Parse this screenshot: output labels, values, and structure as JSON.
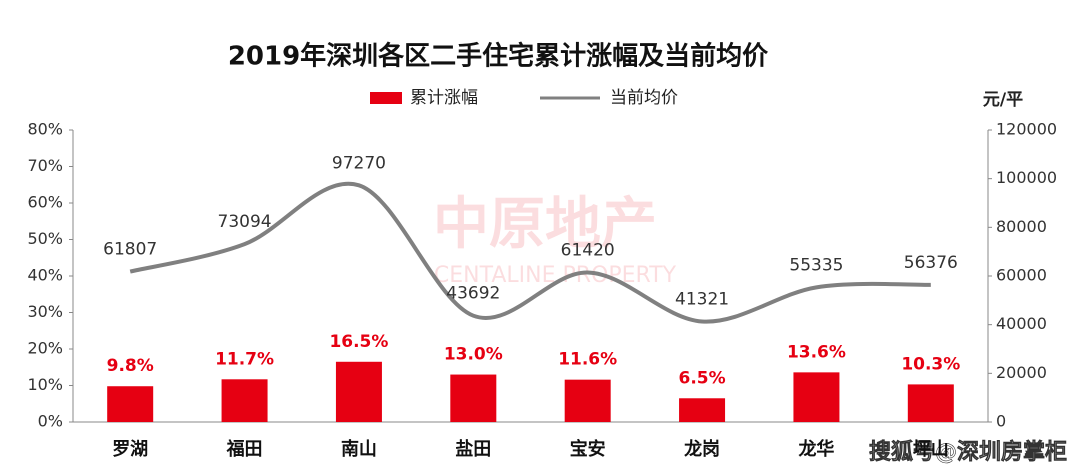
{
  "chart_data": {
    "type": "combo",
    "title": "2019年深圳各区二手住宅累计涨幅及当前均价",
    "y2_unit": "元/平",
    "watermark": "中原地产",
    "watermark_sub": "CENTALINE PROPERTY",
    "source_mark": "搜狐号@深圳房掌柜",
    "categories": [
      "罗湖",
      "福田",
      "南山",
      "盐田",
      "宝安",
      "龙岗",
      "龙华",
      "坪山"
    ],
    "series": [
      {
        "name": "累计涨幅",
        "type": "bar",
        "color": "#e60012",
        "values": [
          9.8,
          11.7,
          16.5,
          13.0,
          11.6,
          6.5,
          13.6,
          10.3
        ],
        "value_labels": [
          "9.8%",
          "11.7%",
          "16.5%",
          "13.0%",
          "11.6%",
          "6.5%",
          "13.6%",
          "10.3%"
        ]
      },
      {
        "name": "当前均价",
        "type": "line",
        "color": "#808080",
        "axis": "y2",
        "values": [
          61807,
          73094,
          97270,
          43692,
          61420,
          41321,
          55335,
          56376
        ]
      }
    ],
    "ylim": [
      0,
      80
    ],
    "yticks": [
      {
        "value": 0,
        "label": "0%"
      },
      {
        "value": 10,
        "label": "10%"
      },
      {
        "value": 20,
        "label": "20%"
      },
      {
        "value": 30,
        "label": "30%"
      },
      {
        "value": 40,
        "label": "40%"
      },
      {
        "value": 50,
        "label": "50%"
      },
      {
        "value": 60,
        "label": "60%"
      },
      {
        "value": 70,
        "label": "70%"
      },
      {
        "value": 80,
        "label": "80%"
      }
    ],
    "y2lim": [
      0,
      120000
    ],
    "y2ticks": [
      0,
      20000,
      40000,
      60000,
      80000,
      100000,
      120000
    ],
    "grid": false
  }
}
